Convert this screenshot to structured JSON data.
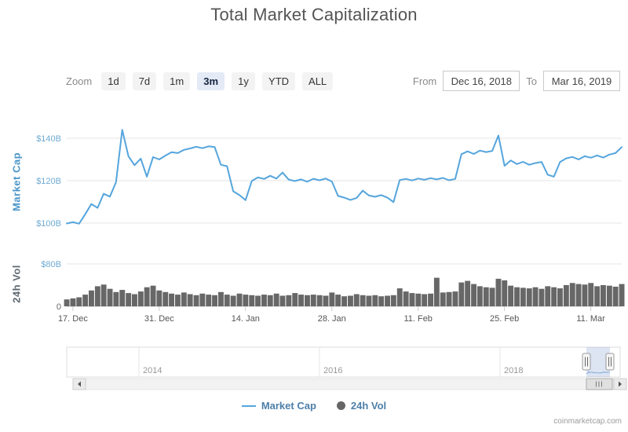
{
  "header": {
    "title": "Total Market Capitalization"
  },
  "controls": {
    "zoom_label": "Zoom",
    "buttons": [
      {
        "label": "1d",
        "selected": false
      },
      {
        "label": "7d",
        "selected": false
      },
      {
        "label": "1m",
        "selected": false
      },
      {
        "label": "3m",
        "selected": true
      },
      {
        "label": "1y",
        "selected": false
      },
      {
        "label": "YTD",
        "selected": false
      },
      {
        "label": "ALL",
        "selected": false
      }
    ],
    "from_label": "From",
    "from_value": "Dec 16, 2018",
    "to_label": "To",
    "to_value": "Mar 16, 2019"
  },
  "legend": [
    {
      "name": "Market Cap",
      "marker": "line-marker-icon",
      "color": "#55a5dd"
    },
    {
      "name": "24h Vol",
      "marker": "circle-marker-icon",
      "color": "#666666"
    }
  ],
  "credit": "coinmarketcap.com",
  "chart_data": {
    "type": "line",
    "title": "Total Market Capitalization",
    "x_start": "Dec 16, 2018",
    "x_end": "Mar 16, 2019",
    "interval": "daily",
    "x_tick_labels": [
      "17. Dec",
      "31. Dec",
      "14. Jan",
      "28. Jan",
      "11. Feb",
      "25. Feb",
      "11. Mar"
    ],
    "market_cap": {
      "name": "Market Cap",
      "type": "line",
      "unit": "$B",
      "color": "#55a5dd",
      "y_ticks": [
        "$100B",
        "$120B",
        "$140B"
      ],
      "y_tick_values": [
        100,
        120,
        140
      ],
      "ylim": [
        97,
        148
      ],
      "values": [
        99.8,
        100.4,
        99.7,
        104.2,
        109.0,
        107.2,
        113.8,
        112.5,
        119.3,
        144.0,
        131.5,
        127.3,
        130.4,
        121.9,
        131.1,
        130.0,
        131.8,
        133.4,
        133.0,
        134.5,
        135.2,
        136.0,
        135.3,
        136.2,
        135.8,
        127.5,
        126.8,
        115.0,
        113.2,
        110.8,
        119.8,
        121.5,
        120.8,
        122.3,
        121.0,
        123.8,
        120.5,
        119.8,
        120.6,
        119.5,
        120.9,
        120.2,
        121.0,
        119.6,
        112.8,
        112.0,
        110.9,
        111.8,
        115.3,
        113.0,
        112.4,
        113.2,
        112.0,
        109.9,
        120.3,
        120.8,
        120.1,
        121.0,
        120.4,
        121.2,
        120.6,
        121.3,
        120.2,
        120.8,
        132.5,
        133.8,
        132.6,
        134.2,
        133.5,
        134.0,
        141.3,
        127.0,
        129.5,
        127.8,
        128.9,
        127.5,
        128.3,
        128.8,
        122.8,
        121.9,
        128.8,
        130.5,
        131.2,
        130.0,
        131.5,
        130.8,
        131.9,
        130.9,
        132.3,
        133.0,
        135.8
      ]
    },
    "volume_24h": {
      "name": "24h Vol",
      "type": "column",
      "unit": "$B",
      "color": "#676767",
      "y_ticks": [
        "0",
        "$80B"
      ],
      "y_tick_values": [
        0,
        80
      ],
      "ylim": [
        0,
        80
      ],
      "values": [
        13,
        15,
        17,
        22,
        30,
        38,
        41,
        33,
        27,
        31,
        25,
        23,
        28,
        36,
        39,
        30,
        27,
        24,
        22,
        26,
        23,
        21,
        24,
        22,
        21,
        27,
        22,
        20,
        24,
        22,
        21,
        20,
        22,
        21,
        24,
        20,
        21,
        25,
        22,
        21,
        22,
        21,
        20,
        26,
        22,
        19,
        20,
        23,
        21,
        20,
        21,
        19,
        20,
        21,
        34,
        28,
        25,
        24,
        23,
        24,
        54,
        26,
        27,
        28,
        45,
        48,
        42,
        38,
        36,
        35,
        52,
        49,
        39,
        36,
        35,
        34,
        36,
        33,
        38,
        36,
        34,
        40,
        44,
        42,
        41,
        44,
        38,
        40,
        39,
        37,
        42
      ]
    },
    "navigator": {
      "year_labels": [
        "2014",
        "2016",
        "2018"
      ],
      "full_range_max": 830,
      "selection_start": "Dec 16, 2018",
      "selection_end": "Mar 16, 2019"
    }
  }
}
